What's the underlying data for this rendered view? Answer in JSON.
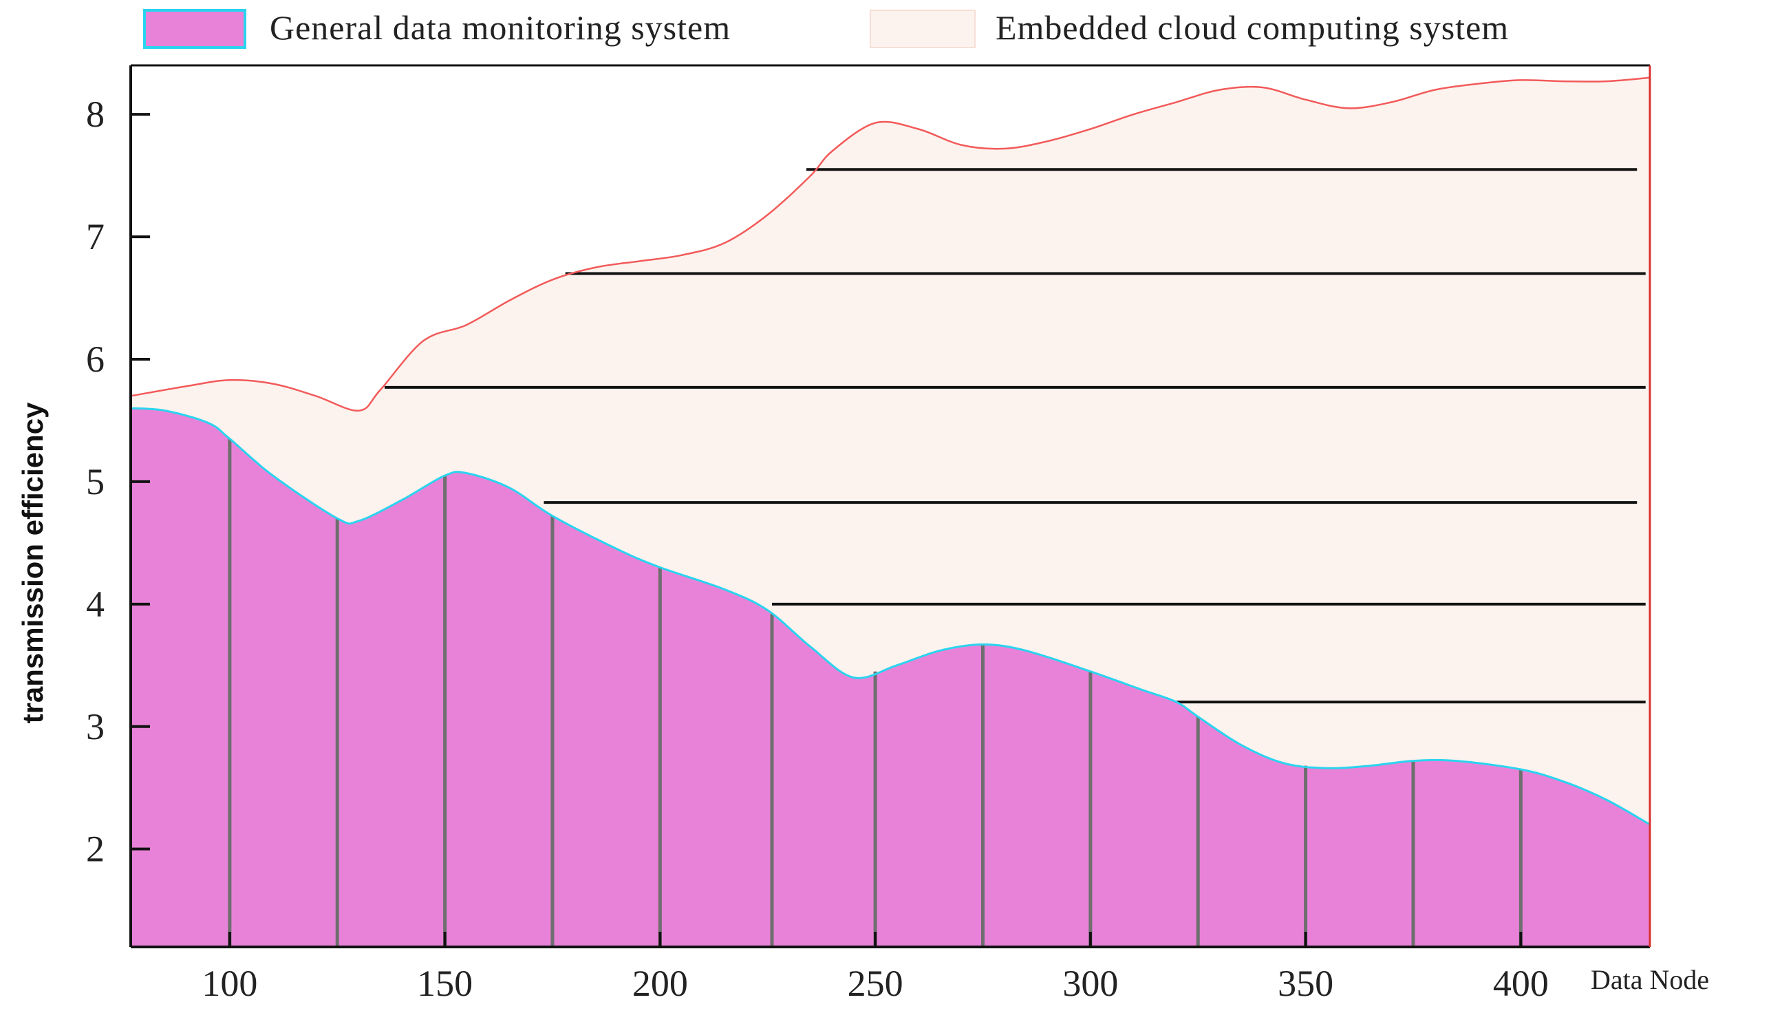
{
  "chart_data": {
    "type": "area",
    "title": "",
    "xlabel": "Data Node",
    "ylabel": "transmission efficiency",
    "xlim": [
      77,
      430
    ],
    "ylim": [
      1.2,
      8.4
    ],
    "x_ticks": [
      100,
      150,
      200,
      250,
      300,
      350,
      400
    ],
    "y_ticks": [
      2,
      3,
      4,
      5,
      6,
      7,
      8
    ],
    "legend_position": "top",
    "series": [
      {
        "name": "General data monitoring system",
        "fill": "#e882d8",
        "stroke": "#2ad4ee",
        "x": [
          77,
          85,
          95,
          100,
          110,
          125,
          130,
          140,
          150,
          155,
          165,
          175,
          190,
          200,
          215,
          225,
          235,
          245,
          255,
          265,
          275,
          285,
          300,
          312,
          320,
          325,
          335,
          345,
          355,
          365,
          375,
          385,
          400,
          410,
          420,
          430
        ],
        "y": [
          5.6,
          5.58,
          5.48,
          5.35,
          5.05,
          4.7,
          4.68,
          4.85,
          5.05,
          5.07,
          4.95,
          4.72,
          4.45,
          4.3,
          4.12,
          3.95,
          3.65,
          3.4,
          3.5,
          3.62,
          3.67,
          3.62,
          3.45,
          3.3,
          3.2,
          3.08,
          2.85,
          2.7,
          2.66,
          2.68,
          2.72,
          2.72,
          2.65,
          2.55,
          2.4,
          2.2
        ]
      },
      {
        "name": "Embedded cloud computing system",
        "fill": "#fdf3ee",
        "stroke": "#f25a5a",
        "x": [
          77,
          90,
          100,
          110,
          120,
          130,
          135,
          145,
          155,
          165,
          175,
          185,
          195,
          205,
          215,
          225,
          235,
          240,
          250,
          260,
          270,
          280,
          290,
          300,
          310,
          320,
          330,
          340,
          350,
          360,
          370,
          380,
          390,
          400,
          410,
          420,
          430
        ],
        "y": [
          5.7,
          5.78,
          5.83,
          5.8,
          5.7,
          5.58,
          5.75,
          6.15,
          6.28,
          6.48,
          6.65,
          6.75,
          6.8,
          6.85,
          6.95,
          7.18,
          7.5,
          7.7,
          7.93,
          7.88,
          7.75,
          7.72,
          7.78,
          7.88,
          8.0,
          8.1,
          8.2,
          8.22,
          8.12,
          8.05,
          8.1,
          8.2,
          8.25,
          8.28,
          8.27,
          8.27,
          8.3
        ]
      }
    ],
    "reference_lines": [
      {
        "y": 7.55,
        "x_start": 234,
        "x_end": 427
      },
      {
        "y": 6.7,
        "x_start": 178,
        "x_end": 429
      },
      {
        "y": 5.77,
        "x_start": 136,
        "x_end": 429
      },
      {
        "y": 4.83,
        "x_start": 173,
        "x_end": 427
      },
      {
        "y": 4.0,
        "x_start": 226,
        "x_end": 429
      },
      {
        "y": 3.2,
        "x_start": 320,
        "x_end": 429
      }
    ],
    "drop_lines_x": [
      100,
      125,
      150,
      175,
      200,
      226,
      250,
      275,
      300,
      325,
      350,
      375,
      400
    ],
    "colors": {
      "axis": "#111111",
      "right_border": "#d9302f",
      "reference_line": "#111111",
      "drop_line": "#6e6e6e"
    }
  }
}
